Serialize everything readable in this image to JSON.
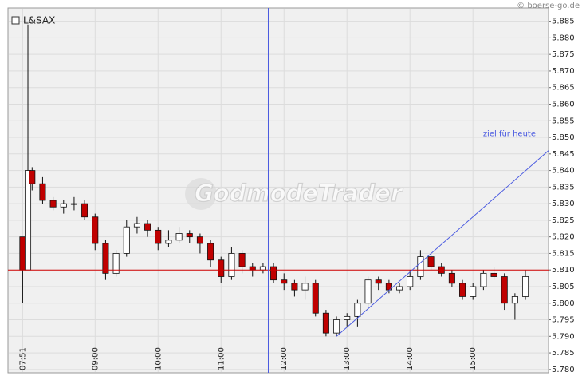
{
  "chart_data": {
    "type": "candlestick",
    "source": "© boerse-go.de",
    "watermark": "GodmodeTrader",
    "xlim": [
      457,
      972
    ],
    "ylim": [
      5.779,
      5.889
    ],
    "xticks": [
      {
        "value": 471,
        "label": "07:51"
      },
      {
        "value": 540,
        "label": "09:00"
      },
      {
        "value": 600,
        "label": "10:00"
      },
      {
        "value": 660,
        "label": "11:00"
      },
      {
        "value": 720,
        "label": "12:00"
      },
      {
        "value": 780,
        "label": "13:00"
      },
      {
        "value": 840,
        "label": "14:00"
      },
      {
        "value": 900,
        "label": "15:00"
      }
    ],
    "yticks": [
      {
        "value": 5.78,
        "label": "5.780"
      },
      5.785,
      {
        "value": 5.79,
        "label": "5.790"
      },
      5.795,
      {
        "value": 5.8,
        "label": "5.800"
      },
      5.805,
      {
        "value": 5.81,
        "label": "5.810"
      },
      5.815,
      {
        "value": 5.82,
        "label": "5.820"
      },
      5.825,
      {
        "value": 5.83,
        "label": "5.830"
      },
      5.835,
      {
        "value": 5.84,
        "label": "5.840"
      },
      5.845,
      {
        "value": 5.85,
        "label": "5.850"
      },
      5.855,
      {
        "value": 5.86,
        "label": "5.860"
      },
      5.865,
      {
        "value": 5.87,
        "label": "5.870"
      },
      5.875,
      {
        "value": 5.88,
        "label": "5.880"
      },
      5.885
    ],
    "grid": true,
    "up_color": "#ffffff",
    "down_color": "#c00000",
    "series": [
      {
        "name": "L&SAX",
        "x": [
          471,
          476,
          480,
          490,
          500,
          510,
          520,
          530,
          540,
          550,
          560,
          570,
          580,
          590,
          600,
          610,
          620,
          630,
          640,
          650,
          660,
          670,
          680,
          690,
          700,
          710,
          720,
          730,
          740,
          750,
          760,
          770,
          780,
          790,
          800,
          810,
          820,
          830,
          840,
          850,
          860,
          870,
          880,
          890,
          900,
          910,
          920,
          930,
          940,
          950
        ],
        "open": [
          5.82,
          5.81,
          5.84,
          5.836,
          5.831,
          5.829,
          5.83,
          5.83,
          5.826,
          5.818,
          5.809,
          5.815,
          5.823,
          5.824,
          5.822,
          5.818,
          5.819,
          5.821,
          5.82,
          5.818,
          5.813,
          5.808,
          5.815,
          5.811,
          5.81,
          5.811,
          5.807,
          5.806,
          5.804,
          5.806,
          5.797,
          5.791,
          5.795,
          5.796,
          5.8,
          5.807,
          5.806,
          5.804,
          5.805,
          5.808,
          5.814,
          5.811,
          5.809,
          5.806,
          5.802,
          5.805,
          5.809,
          5.808,
          5.8,
          5.802
        ],
        "high": [
          5.82,
          5.884,
          5.841,
          5.838,
          5.832,
          5.831,
          5.832,
          5.831,
          5.827,
          5.819,
          5.816,
          5.825,
          5.826,
          5.825,
          5.823,
          5.822,
          5.823,
          5.822,
          5.821,
          5.819,
          5.814,
          5.817,
          5.816,
          5.812,
          5.812,
          5.812,
          5.809,
          5.807,
          5.808,
          5.807,
          5.798,
          5.796,
          5.797,
          5.801,
          5.808,
          5.808,
          5.807,
          5.806,
          5.81,
          5.816,
          5.815,
          5.812,
          5.81,
          5.807,
          5.806,
          5.81,
          5.811,
          5.809,
          5.803,
          5.81
        ],
        "low": [
          5.8,
          5.81,
          5.834,
          5.83,
          5.828,
          5.827,
          5.828,
          5.825,
          5.816,
          5.807,
          5.808,
          5.814,
          5.821,
          5.82,
          5.816,
          5.817,
          5.818,
          5.818,
          5.815,
          5.811,
          5.806,
          5.807,
          5.809,
          5.808,
          5.809,
          5.806,
          5.804,
          5.802,
          5.801,
          5.796,
          5.79,
          5.79,
          5.793,
          5.793,
          5.799,
          5.804,
          5.803,
          5.803,
          5.804,
          5.807,
          5.81,
          5.808,
          5.805,
          5.801,
          5.801,
          5.804,
          5.807,
          5.798,
          5.795,
          5.801
        ],
        "close": [
          5.81,
          5.84,
          5.836,
          5.831,
          5.829,
          5.83,
          5.83,
          5.826,
          5.818,
          5.809,
          5.815,
          5.823,
          5.824,
          5.822,
          5.818,
          5.819,
          5.821,
          5.82,
          5.818,
          5.813,
          5.808,
          5.815,
          5.811,
          5.81,
          5.811,
          5.807,
          5.806,
          5.804,
          5.806,
          5.797,
          5.791,
          5.795,
          5.796,
          5.8,
          5.807,
          5.806,
          5.804,
          5.805,
          5.808,
          5.814,
          5.811,
          5.809,
          5.806,
          5.802,
          5.805,
          5.809,
          5.808,
          5.8,
          5.802,
          5.808
        ]
      }
    ],
    "hline": {
      "value": 5.81,
      "color": "#d00000"
    },
    "vline": {
      "x": 705,
      "color": "#4a5ae0"
    },
    "trend_line": {
      "x": [
        770,
        972
      ],
      "y": [
        5.79,
        5.846
      ],
      "color": "#4a5ae0"
    },
    "annotation": {
      "text": "ziel für heute",
      "color": "#4a5ae0"
    }
  }
}
